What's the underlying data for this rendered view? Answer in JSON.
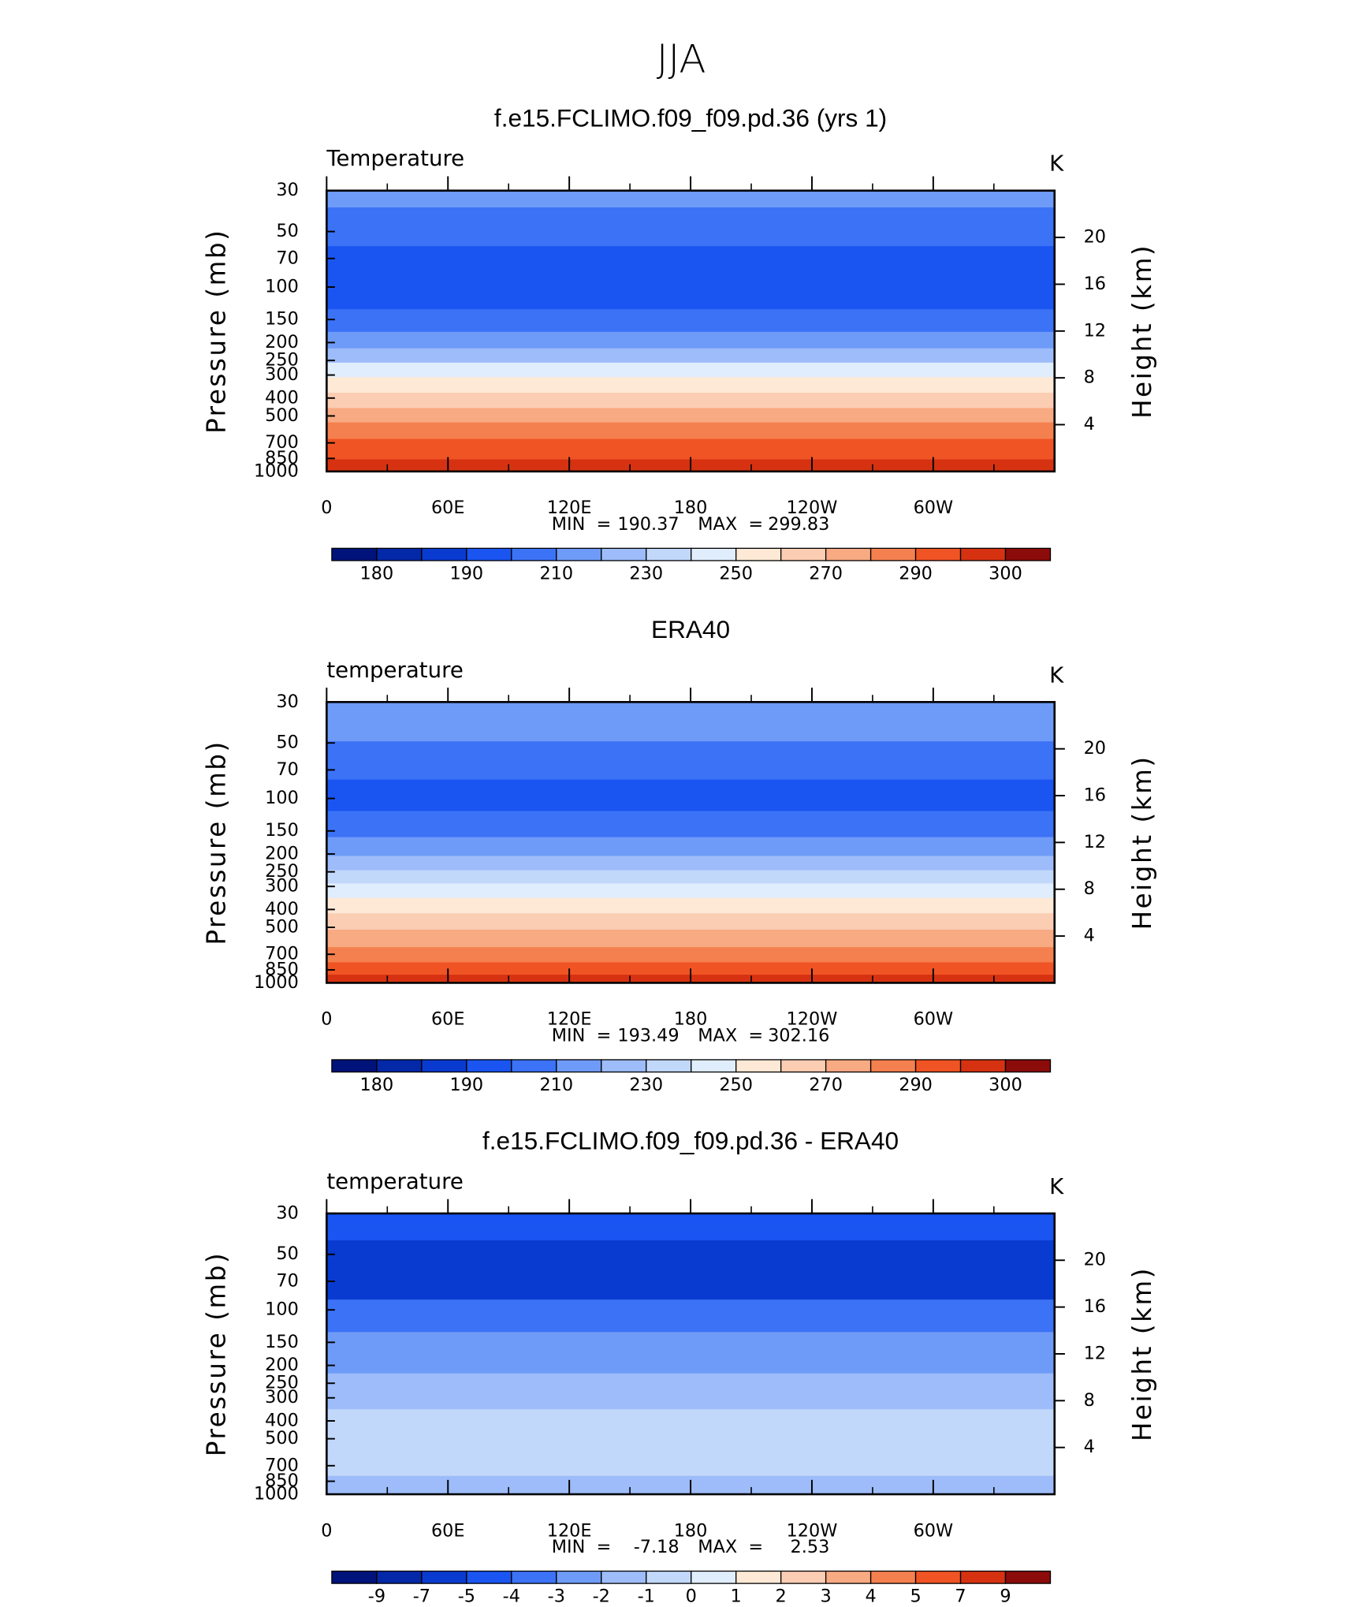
{
  "title": "JJA",
  "chart_data": [
    {
      "type": "contour",
      "title": "f.e15.FCLIMO.f09_f09.pd.36 (yrs 1)",
      "subtitle": "Temperature",
      "units": "K",
      "ylabel": "Pressure (mb)",
      "y2label": "Height (km)",
      "ylim": [
        30,
        1000
      ],
      "ylog": true,
      "yticks": [
        30,
        50,
        70,
        100,
        150,
        200,
        250,
        300,
        400,
        500,
        700,
        850,
        1000
      ],
      "y2lim": [
        0,
        24
      ],
      "y2ticks": [
        4,
        8,
        12,
        16,
        20
      ],
      "xlim": [
        0,
        360
      ],
      "xticks": [
        0,
        {
          "value": 60,
          "label": "60E"
        },
        {
          "value": 120,
          "label": "120E"
        },
        180,
        {
          "value": 240,
          "label": "120W"
        },
        {
          "value": 300,
          "label": "60W"
        }
      ],
      "min_label": "MIN  =",
      "min": 190.37,
      "max_label": "MAX  =",
      "max": 299.83,
      "colorbar": {
        "colors": [
          "#00137a",
          "#0328a8",
          "#0a3bd0",
          "#1a55f2",
          "#3c72f6",
          "#6f9bf8",
          "#9dbcf9",
          "#c2d8fb",
          "#e0edfd",
          "#fde9d6",
          "#fbcdb2",
          "#f8aa83",
          "#f5804f",
          "#f05424",
          "#d63212",
          "#8b0c0a"
        ],
        "labels": [
          180,
          190,
          210,
          230,
          250,
          270,
          290,
          300
        ],
        "label_step": 2
      },
      "layers": [
        {
          "bottom": 37,
          "level": 5
        },
        {
          "bottom": 60,
          "level": 4
        },
        {
          "bottom": 132,
          "level": 3
        },
        {
          "bottom": 175,
          "level": 4
        },
        {
          "bottom": 215,
          "level": 5
        },
        {
          "bottom": 257,
          "level": 6
        },
        {
          "bottom": 308,
          "level": 8
        },
        {
          "bottom": 374,
          "level": 9
        },
        {
          "bottom": 453,
          "level": 10
        },
        {
          "bottom": 542,
          "level": 11
        },
        {
          "bottom": 666,
          "level": 12
        },
        {
          "bottom": 860,
          "level": 13
        },
        {
          "bottom": 1000,
          "level": 14
        }
      ]
    },
    {
      "type": "contour",
      "title": "ERA40",
      "subtitle": "temperature",
      "units": "K",
      "ylabel": "Pressure (mb)",
      "y2label": "Height (km)",
      "ylim": [
        30,
        1000
      ],
      "ylog": true,
      "yticks": [
        30,
        50,
        70,
        100,
        150,
        200,
        250,
        300,
        400,
        500,
        700,
        850,
        1000
      ],
      "y2lim": [
        0,
        24
      ],
      "y2ticks": [
        4,
        8,
        12,
        16,
        20
      ],
      "xlim": [
        0,
        360
      ],
      "xticks": [
        0,
        {
          "value": 60,
          "label": "60E"
        },
        {
          "value": 120,
          "label": "120E"
        },
        180,
        {
          "value": 240,
          "label": "120W"
        },
        {
          "value": 300,
          "label": "60W"
        }
      ],
      "min_label": "MIN  =",
      "min": 193.49,
      "max_label": "MAX  =",
      "max": 302.16,
      "colorbar": {
        "colors": [
          "#00137a",
          "#0328a8",
          "#0a3bd0",
          "#1a55f2",
          "#3c72f6",
          "#6f9bf8",
          "#9dbcf9",
          "#c2d8fb",
          "#e0edfd",
          "#fde9d6",
          "#fbcdb2",
          "#f8aa83",
          "#f5804f",
          "#f05424",
          "#d63212",
          "#8b0c0a"
        ],
        "labels": [
          180,
          190,
          210,
          230,
          250,
          270,
          290,
          300
        ],
        "label_step": 2
      },
      "layers": [
        {
          "bottom": 49,
          "level": 5
        },
        {
          "bottom": 79,
          "level": 4
        },
        {
          "bottom": 117,
          "level": 3
        },
        {
          "bottom": 162,
          "level": 4
        },
        {
          "bottom": 205,
          "level": 5
        },
        {
          "bottom": 245,
          "level": 6
        },
        {
          "bottom": 289,
          "level": 7
        },
        {
          "bottom": 346,
          "level": 8
        },
        {
          "bottom": 420,
          "level": 9
        },
        {
          "bottom": 515,
          "level": 10
        },
        {
          "bottom": 640,
          "level": 11
        },
        {
          "bottom": 774,
          "level": 12
        },
        {
          "bottom": 903,
          "level": 13
        },
        {
          "bottom": 1000,
          "level": 14
        }
      ]
    },
    {
      "type": "contour",
      "title": "f.e15.FCLIMO.f09_f09.pd.36 - ERA40",
      "subtitle": "temperature",
      "units": "K",
      "ylabel": "Pressure (mb)",
      "y2label": "Height (km)",
      "ylim": [
        30,
        1000
      ],
      "ylog": true,
      "yticks": [
        30,
        50,
        70,
        100,
        150,
        200,
        250,
        300,
        400,
        500,
        700,
        850,
        1000
      ],
      "y2lim": [
        0,
        24
      ],
      "y2ticks": [
        4,
        8,
        12,
        16,
        20
      ],
      "xlim": [
        0,
        360
      ],
      "xticks": [
        0,
        {
          "value": 60,
          "label": "60E"
        },
        {
          "value": 120,
          "label": "120E"
        },
        180,
        {
          "value": 240,
          "label": "120W"
        },
        {
          "value": 300,
          "label": "60W"
        }
      ],
      "min_label": "MIN  =",
      "min": -7.18,
      "max_label": "MAX  =",
      "max": 2.53,
      "colorbar": {
        "colors": [
          "#00137a",
          "#0328a8",
          "#0a3bd0",
          "#1a55f2",
          "#3c72f6",
          "#6f9bf8",
          "#9dbcf9",
          "#c2d8fb",
          "#e0edfd",
          "#fde9d6",
          "#fbcdb2",
          "#f8aa83",
          "#f5804f",
          "#f05424",
          "#d63212",
          "#8b0c0a"
        ],
        "labels": [
          -9,
          -7,
          -5,
          -4,
          -3,
          -2,
          -1,
          0,
          1,
          2,
          3,
          4,
          5,
          7,
          9
        ],
        "label_step": 1
      },
      "layers": [
        {
          "bottom": 42,
          "level": 3
        },
        {
          "bottom": 88,
          "level": 2
        },
        {
          "bottom": 132,
          "level": 4
        },
        {
          "bottom": 221,
          "level": 5
        },
        {
          "bottom": 346,
          "level": 6
        },
        {
          "bottom": 795,
          "level": 7
        },
        {
          "bottom": 1000,
          "level": 6
        }
      ]
    }
  ]
}
